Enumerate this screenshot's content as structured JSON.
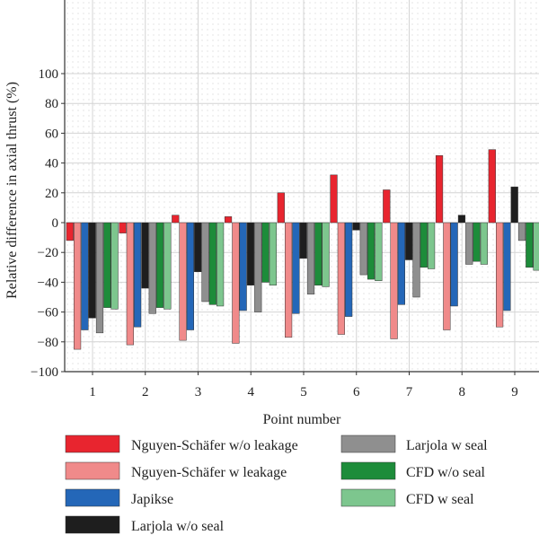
{
  "chart_data": {
    "type": "bar",
    "xlabel": "Point number",
    "ylabel": "Relative difference in axial thrust (%)",
    "ylim": [
      -100,
      100
    ],
    "yticks": [
      -100,
      -80,
      -60,
      -40,
      -20,
      0,
      20,
      40,
      60,
      80,
      100
    ],
    "categories": [
      "1",
      "2",
      "3",
      "4",
      "5",
      "6",
      "7",
      "8",
      "9"
    ],
    "grid": "dotted",
    "legend_position": "bottom",
    "series": [
      {
        "name": "Nguyen-Schäfer w/o leakage",
        "color": "#e8252f",
        "values": [
          -12,
          -7,
          5,
          4,
          20,
          32,
          22,
          45,
          49
        ]
      },
      {
        "name": "Nguyen-Schäfer w leakage",
        "color": "#f08a8a",
        "values": [
          -85,
          -82,
          -79,
          -81,
          -77,
          -75,
          -78,
          -72,
          -70
        ]
      },
      {
        "name": "Japikse",
        "color": "#2467b8",
        "values": [
          -72,
          -70,
          -72,
          -59,
          -61,
          -63,
          -55,
          -56,
          -59
        ]
      },
      {
        "name": "Larjola w/o seal",
        "color": "#1e1e1e",
        "values": [
          -64,
          -44,
          -33,
          -42,
          -24,
          -5,
          -25,
          5,
          24
        ]
      },
      {
        "name": "Larjola w seal",
        "color": "#8f8f8f",
        "values": [
          -74,
          -61,
          -53,
          -60,
          -48,
          -35,
          -50,
          -28,
          -12
        ]
      },
      {
        "name": "CFD w/o seal",
        "color": "#1d8c3a",
        "values": [
          -57,
          -57,
          -55,
          -40,
          -42,
          -38,
          -30,
          -26,
          -30
        ]
      },
      {
        "name": "CFD w seal",
        "color": "#7dc68e",
        "values": [
          -58,
          -58,
          -56,
          -42,
          -43,
          -39,
          -31,
          -28,
          -32
        ]
      }
    ]
  }
}
